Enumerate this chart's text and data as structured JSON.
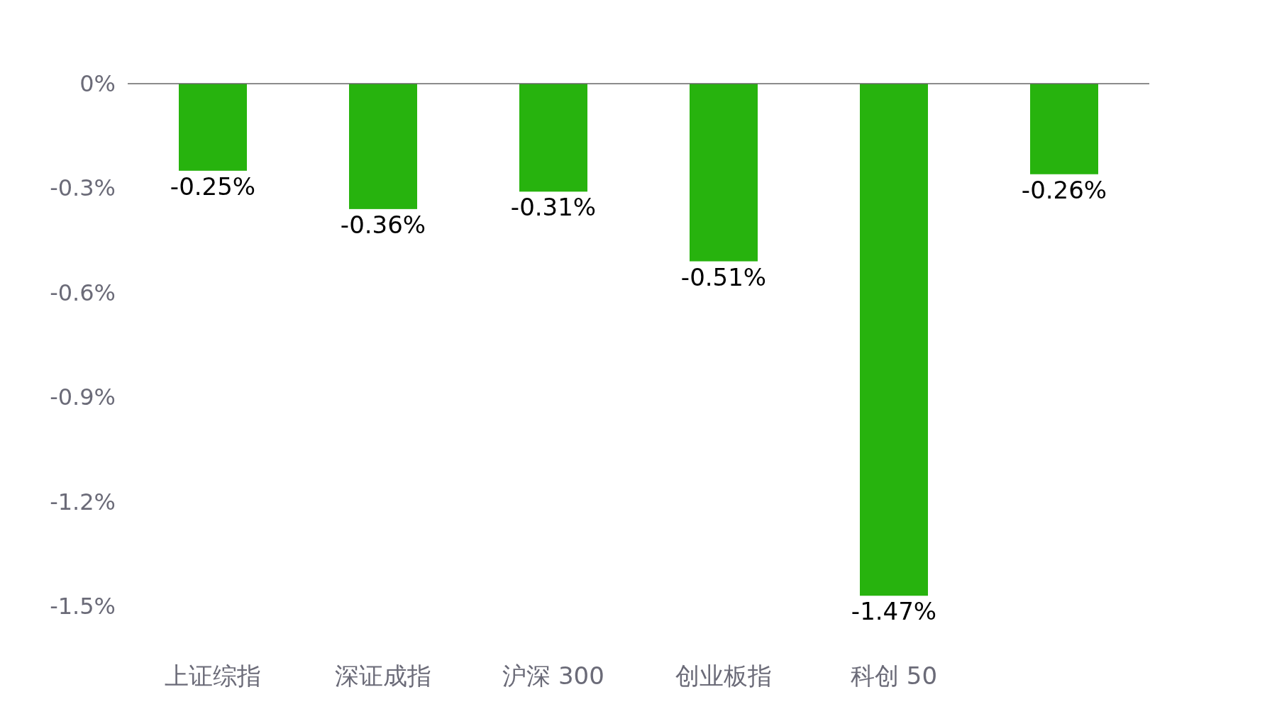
{
  "chart_data": {
    "type": "bar",
    "categories": [
      "上证综指",
      "深证成指",
      "沪深 300",
      "创业板指",
      "科创 50",
      null
    ],
    "values": [
      -0.25,
      -0.36,
      -0.31,
      -0.51,
      -1.47,
      -0.26
    ],
    "value_labels": [
      "-0.25%",
      "-0.36%",
      "-0.31%",
      "-0.51%",
      "-1.47%",
      "-0.26%"
    ],
    "color": "#27b30e",
    "ylim": [
      -1.5,
      0
    ],
    "yticks": [
      {
        "value": 0,
        "label": "0%"
      },
      {
        "value": -0.3,
        "label": "-0.3%"
      },
      {
        "value": -0.6,
        "label": "-0.6%"
      },
      {
        "value": -0.9,
        "label": "-0.9%"
      },
      {
        "value": -1.2,
        "label": "-1.2%"
      },
      {
        "value": -1.5,
        "label": "-1.5%"
      }
    ],
    "grid": false
  }
}
